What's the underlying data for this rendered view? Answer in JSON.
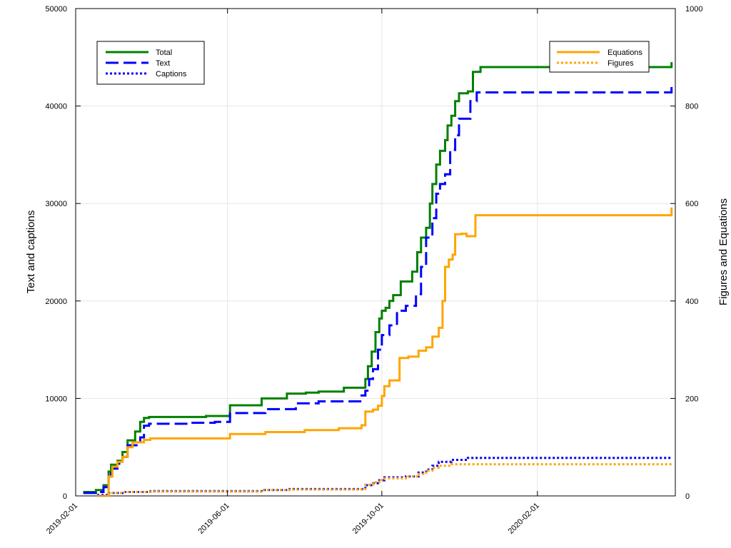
{
  "chart_data": {
    "type": "line",
    "step": true,
    "grid": true,
    "x_axis": {
      "type": "date",
      "range": [
        "2019-02-01",
        "2020-05-20"
      ],
      "ticks": [
        "2019-02-01",
        "2019-06-01",
        "2019-10-01",
        "2020-02-01"
      ],
      "tick_rotation": -45
    },
    "y_left": {
      "label": "Text and captions",
      "range": [
        0,
        50000
      ],
      "ticks": [
        "0",
        "10000",
        "20000",
        "30000",
        "40000",
        "50000"
      ]
    },
    "y_right": {
      "label": "Figures and Equations",
      "range": [
        0,
        1000
      ],
      "ticks": [
        "0",
        "200",
        "400",
        "600",
        "800",
        "1000"
      ]
    },
    "legends": [
      {
        "placement": "top-left",
        "entries": [
          {
            "label": "Total",
            "series": "Total"
          },
          {
            "label": "Text",
            "series": "Text"
          },
          {
            "label": "Captions",
            "series": "Captions"
          }
        ]
      },
      {
        "placement": "top-right",
        "entries": [
          {
            "label": "Equations",
            "series": "Equations"
          },
          {
            "label": "Figures",
            "series": "Figures"
          }
        ]
      }
    ],
    "series": [
      {
        "name": "Total",
        "axis": "left",
        "color": "#008000",
        "dash": "solid",
        "points": [
          [
            "2019-02-07",
            400
          ],
          [
            "2019-02-17",
            600
          ],
          [
            "2019-02-23",
            1100
          ],
          [
            "2019-02-27",
            2500
          ],
          [
            "2019-03-01",
            3200
          ],
          [
            "2019-03-06",
            3600
          ],
          [
            "2019-03-10",
            4500
          ],
          [
            "2019-03-14",
            5700
          ],
          [
            "2019-03-20",
            6600
          ],
          [
            "2019-03-24",
            7600
          ],
          [
            "2019-03-27",
            8000
          ],
          [
            "2019-03-31",
            8100
          ],
          [
            "2019-04-20",
            8100
          ],
          [
            "2019-05-15",
            8200
          ],
          [
            "2019-06-03",
            9300
          ],
          [
            "2019-06-28",
            10000
          ],
          [
            "2019-07-18",
            10500
          ],
          [
            "2019-08-02",
            10600
          ],
          [
            "2019-08-12",
            10700
          ],
          [
            "2019-09-01",
            11100
          ],
          [
            "2019-09-18",
            12000
          ],
          [
            "2019-09-20",
            13300
          ],
          [
            "2019-09-23",
            14800
          ],
          [
            "2019-09-26",
            16800
          ],
          [
            "2019-09-29",
            18200
          ],
          [
            "2019-10-01",
            19000
          ],
          [
            "2019-10-04",
            19300
          ],
          [
            "2019-10-07",
            20000
          ],
          [
            "2019-10-10",
            20600
          ],
          [
            "2019-10-16",
            22000
          ],
          [
            "2019-10-25",
            23000
          ],
          [
            "2019-10-29",
            25000
          ],
          [
            "2019-11-01",
            26500
          ],
          [
            "2019-11-05",
            27500
          ],
          [
            "2019-11-08",
            30000
          ],
          [
            "2019-11-10",
            32000
          ],
          [
            "2019-11-13",
            34000
          ],
          [
            "2019-11-16",
            35400
          ],
          [
            "2019-11-20",
            36500
          ],
          [
            "2019-11-22",
            38000
          ],
          [
            "2019-11-25",
            39000
          ],
          [
            "2019-11-28",
            40500
          ],
          [
            "2019-12-01",
            41300
          ],
          [
            "2019-12-08",
            41500
          ],
          [
            "2019-12-12",
            43500
          ],
          [
            "2019-12-18",
            44000
          ],
          [
            "2020-05-14",
            44000
          ],
          [
            "2020-05-17",
            44500
          ]
        ]
      },
      {
        "name": "Text",
        "axis": "left",
        "color": "#0000ff",
        "dash": "dashed",
        "points": [
          [
            "2019-02-07",
            300
          ],
          [
            "2019-02-17",
            400
          ],
          [
            "2019-02-23",
            900
          ],
          [
            "2019-02-27",
            2000
          ],
          [
            "2019-03-01",
            2800
          ],
          [
            "2019-03-06",
            3300
          ],
          [
            "2019-03-10",
            4000
          ],
          [
            "2019-03-14",
            5200
          ],
          [
            "2019-03-24",
            6000
          ],
          [
            "2019-03-27",
            7200
          ],
          [
            "2019-03-31",
            7400
          ],
          [
            "2019-05-01",
            7500
          ],
          [
            "2019-05-22",
            7600
          ],
          [
            "2019-06-03",
            8500
          ],
          [
            "2019-07-01",
            8900
          ],
          [
            "2019-07-25",
            9500
          ],
          [
            "2019-08-12",
            9700
          ],
          [
            "2019-09-15",
            10300
          ],
          [
            "2019-09-18",
            10800
          ],
          [
            "2019-09-21",
            12000
          ],
          [
            "2019-09-24",
            13000
          ],
          [
            "2019-09-28",
            15000
          ],
          [
            "2019-10-01",
            16500
          ],
          [
            "2019-10-07",
            17500
          ],
          [
            "2019-10-13",
            19000
          ],
          [
            "2019-10-20",
            19500
          ],
          [
            "2019-10-28",
            20700
          ],
          [
            "2019-11-01",
            23500
          ],
          [
            "2019-11-05",
            26500
          ],
          [
            "2019-11-10",
            28500
          ],
          [
            "2019-11-13",
            31000
          ],
          [
            "2019-11-16",
            32000
          ],
          [
            "2019-11-20",
            33000
          ],
          [
            "2019-11-24",
            35500
          ],
          [
            "2019-11-28",
            37000
          ],
          [
            "2019-12-01",
            38700
          ],
          [
            "2019-12-08",
            38700
          ],
          [
            "2019-12-10",
            40500
          ],
          [
            "2019-12-15",
            41400
          ],
          [
            "2020-05-14",
            41400
          ],
          [
            "2020-05-17",
            42000
          ]
        ]
      },
      {
        "name": "Captions",
        "axis": "left",
        "color": "#0000ff",
        "dash": "dotted",
        "points": [
          [
            "2019-02-18",
            100
          ],
          [
            "2019-02-27",
            300
          ],
          [
            "2019-03-10",
            400
          ],
          [
            "2019-04-01",
            500
          ],
          [
            "2019-06-01",
            500
          ],
          [
            "2019-06-28",
            600
          ],
          [
            "2019-07-20",
            700
          ],
          [
            "2019-09-15",
            700
          ],
          [
            "2019-09-18",
            1100
          ],
          [
            "2019-09-24",
            1300
          ],
          [
            "2019-09-29",
            1600
          ],
          [
            "2019-10-03",
            1900
          ],
          [
            "2019-10-20",
            2000
          ],
          [
            "2019-10-30",
            2400
          ],
          [
            "2019-11-05",
            2700
          ],
          [
            "2019-11-10",
            3100
          ],
          [
            "2019-11-15",
            3500
          ],
          [
            "2019-11-25",
            3700
          ],
          [
            "2019-12-08",
            3900
          ],
          [
            "2020-05-17",
            3900
          ]
        ]
      },
      {
        "name": "Equations",
        "axis": "right",
        "color": "#ffa500",
        "dash": "solid",
        "points": [
          [
            "2019-02-24",
            0
          ],
          [
            "2019-02-27",
            40
          ],
          [
            "2019-03-02",
            60
          ],
          [
            "2019-03-06",
            70
          ],
          [
            "2019-03-10",
            80
          ],
          [
            "2019-03-14",
            100
          ],
          [
            "2019-03-18",
            110
          ],
          [
            "2019-03-27",
            115
          ],
          [
            "2019-04-01",
            118
          ],
          [
            "2019-05-01",
            118
          ],
          [
            "2019-06-03",
            127
          ],
          [
            "2019-07-01",
            131
          ],
          [
            "2019-08-01",
            135
          ],
          [
            "2019-08-28",
            139
          ],
          [
            "2019-09-15",
            145
          ],
          [
            "2019-09-18",
            173
          ],
          [
            "2019-09-24",
            177
          ],
          [
            "2019-09-28",
            185
          ],
          [
            "2019-10-01",
            205
          ],
          [
            "2019-10-03",
            225
          ],
          [
            "2019-10-07",
            237
          ],
          [
            "2019-10-15",
            283
          ],
          [
            "2019-10-22",
            286
          ],
          [
            "2019-10-30",
            298
          ],
          [
            "2019-11-05",
            305
          ],
          [
            "2019-11-10",
            327
          ],
          [
            "2019-11-15",
            345
          ],
          [
            "2019-11-18",
            400
          ],
          [
            "2019-11-20",
            470
          ],
          [
            "2019-11-23",
            485
          ],
          [
            "2019-11-26",
            495
          ],
          [
            "2019-11-28",
            537
          ],
          [
            "2019-12-03",
            538
          ],
          [
            "2019-12-07",
            533
          ],
          [
            "2019-12-14",
            576
          ],
          [
            "2020-05-15",
            576
          ],
          [
            "2020-05-17",
            592
          ]
        ]
      },
      {
        "name": "Figures",
        "axis": "right",
        "color": "#ffa500",
        "dash": "dotted",
        "points": [
          [
            "2019-02-18",
            0
          ],
          [
            "2019-02-27",
            6
          ],
          [
            "2019-03-10",
            8
          ],
          [
            "2019-04-01",
            9
          ],
          [
            "2019-06-01",
            9
          ],
          [
            "2019-06-28",
            12
          ],
          [
            "2019-07-20",
            13
          ],
          [
            "2019-09-15",
            14
          ],
          [
            "2019-09-18",
            23
          ],
          [
            "2019-09-24",
            28
          ],
          [
            "2019-09-29",
            33
          ],
          [
            "2019-10-03",
            36
          ],
          [
            "2019-10-20",
            40
          ],
          [
            "2019-10-30",
            45
          ],
          [
            "2019-11-05",
            52
          ],
          [
            "2019-11-10",
            58
          ],
          [
            "2019-11-15",
            62
          ],
          [
            "2019-11-25",
            65
          ],
          [
            "2020-05-17",
            65
          ]
        ]
      }
    ]
  }
}
